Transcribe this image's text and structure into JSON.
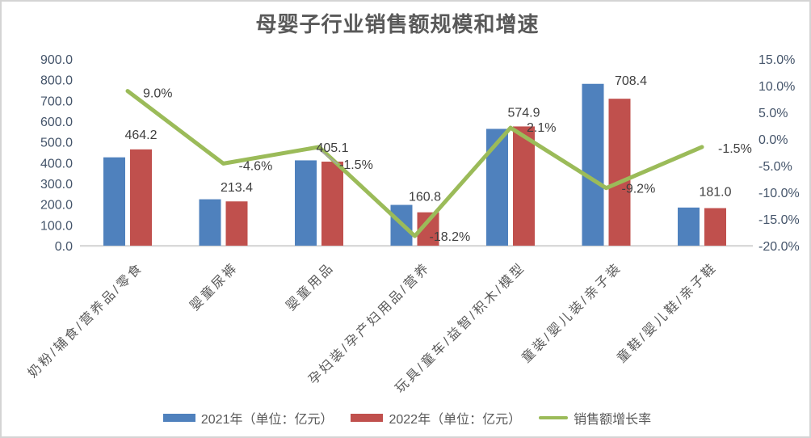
{
  "title": "母婴子行业销售额规模和增速",
  "chart_data": {
    "type": "bar",
    "subtype": "bar-line-combo",
    "grid": false,
    "legend_position": "bottom",
    "categories": [
      "奶粉/辅食/营养品/零食",
      "婴童尿裤",
      "婴童用品",
      "孕妇装/孕产妇用品/营养",
      "玩具/童车/益智/积木/模型",
      "童装/婴儿装/亲子装",
      "童鞋/婴儿鞋/亲子鞋"
    ],
    "series": [
      {
        "name": "2021年（单位：亿元）",
        "type": "bar",
        "axis": "left",
        "color": "#4F81BD",
        "values": [
          425.9,
          223.7,
          411.3,
          196.6,
          563.1,
          780.2,
          183.8
        ]
      },
      {
        "name": "2022年（单位：亿元）",
        "type": "bar",
        "axis": "left",
        "color": "#C0504D",
        "values": [
          464.2,
          213.4,
          405.1,
          160.8,
          574.9,
          708.4,
          181.0
        ],
        "data_labels": [
          "464.2",
          "213.4",
          "405.1",
          "160.8",
          "574.9",
          "708.4",
          "181.0"
        ]
      },
      {
        "name": "销售额增长率",
        "type": "line",
        "axis": "right",
        "color": "#9BBB59",
        "values": [
          9.0,
          -4.6,
          -1.5,
          -18.2,
          2.1,
          -9.2,
          -1.5
        ],
        "data_labels": [
          "9.0%",
          "-4.6%",
          "-1.5%",
          "-18.2%",
          "2.1%",
          "-9.2%",
          "-1.5%"
        ]
      }
    ],
    "left_axis": {
      "min": 0,
      "max": 900,
      "step": 100,
      "tick_labels": [
        "900.0",
        "800.0",
        "700.0",
        "600.0",
        "500.0",
        "400.0",
        "300.0",
        "200.0",
        "100.0",
        "0.0"
      ]
    },
    "right_axis": {
      "min": -20,
      "max": 15,
      "step": 5,
      "tick_labels": [
        "15.0%",
        "10.0%",
        "5.0%",
        "0.0%",
        "-5.0%",
        "-10.0%",
        "-15.0%",
        "-20.0%"
      ]
    },
    "colors": {
      "bar_2021": "#4F81BD",
      "bar_2022": "#C0504D",
      "growth_line": "#9BBB59",
      "axis_line": "#D9D9D9",
      "leader_line": "#A6A6A6",
      "title_text": "#595959",
      "tick_text": "#44546A",
      "label_text": "#3F3F3F"
    }
  }
}
